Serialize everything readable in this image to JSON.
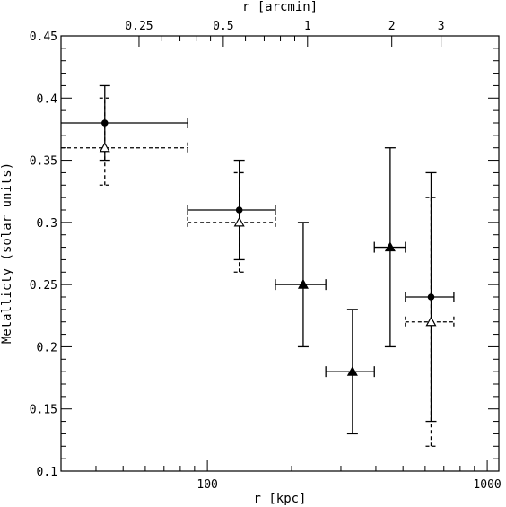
{
  "chart_data": {
    "type": "scatter",
    "x_scale": "log",
    "xlabel": "r [kpc]",
    "ylabel": "Metallicty (solar units)",
    "top_xlabel": "r [arcmin]",
    "xlim": [
      30,
      1100
    ],
    "ylim": [
      0.1,
      0.45
    ],
    "x_tick_labels": [
      {
        "value": 100,
        "label": "100"
      },
      {
        "value": 1000,
        "label": "1000"
      }
    ],
    "y_tick_labels": [
      {
        "value": 0.1,
        "label": "0.1"
      },
      {
        "value": 0.15,
        "label": "0.15"
      },
      {
        "value": 0.2,
        "label": "0.2"
      },
      {
        "value": 0.25,
        "label": "0.25"
      },
      {
        "value": 0.3,
        "label": "0.3"
      },
      {
        "value": 0.35,
        "label": "0.35"
      },
      {
        "value": 0.4,
        "label": "0.4"
      },
      {
        "value": 0.45,
        "label": "0.45"
      }
    ],
    "top_tick_labels": [
      {
        "label": "0.25",
        "kpc": 57
      },
      {
        "label": "0.5",
        "kpc": 114
      },
      {
        "label": "1",
        "kpc": 228
      },
      {
        "label": "2",
        "kpc": 456
      },
      {
        "label": "3",
        "kpc": 684
      }
    ],
    "series": [
      {
        "marker": "filled-circle",
        "line": "solid",
        "points": [
          {
            "x": 43,
            "xlo": 30,
            "xhi": 85,
            "y": 0.38,
            "ylo": 0.35,
            "yhi": 0.41
          },
          {
            "x": 130,
            "xlo": 85,
            "xhi": 175,
            "y": 0.31,
            "ylo": 0.27,
            "yhi": 0.35
          },
          {
            "x": 630,
            "xlo": 510,
            "xhi": 760,
            "y": 0.24,
            "ylo": 0.14,
            "yhi": 0.34
          }
        ]
      },
      {
        "marker": "open-triangle",
        "line": "dashed",
        "points": [
          {
            "x": 43,
            "xlo": 30,
            "xhi": 85,
            "y": 0.36,
            "ylo": 0.33,
            "yhi": 0.4
          },
          {
            "x": 130,
            "xlo": 85,
            "xhi": 175,
            "y": 0.3,
            "ylo": 0.26,
            "yhi": 0.34
          },
          {
            "x": 630,
            "xlo": 510,
            "xhi": 760,
            "y": 0.22,
            "ylo": 0.12,
            "yhi": 0.32
          }
        ]
      },
      {
        "marker": "filled-triangle",
        "line": "solid",
        "points": [
          {
            "x": 220,
            "xlo": 175,
            "xhi": 265,
            "y": 0.25,
            "ylo": 0.2,
            "yhi": 0.3
          },
          {
            "x": 330,
            "xlo": 265,
            "xhi": 395,
            "y": 0.18,
            "ylo": 0.13,
            "yhi": 0.23
          },
          {
            "x": 450,
            "xlo": 395,
            "xhi": 510,
            "y": 0.28,
            "ylo": 0.2,
            "yhi": 0.36
          }
        ]
      }
    ],
    "colors": {
      "foreground": "#000000",
      "background": "#ffffff"
    }
  }
}
